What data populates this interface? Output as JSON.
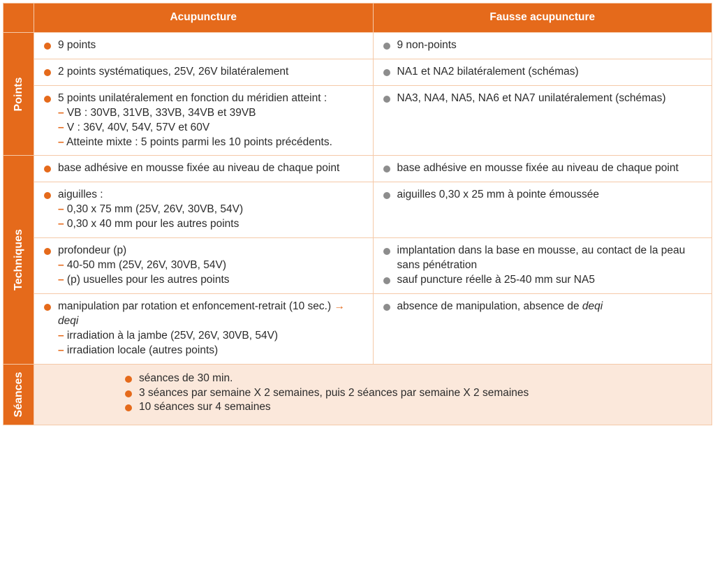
{
  "colors": {
    "orange": "#e56a1b",
    "gray_bullet": "#8d8d8d",
    "border": "#f5c9a8",
    "seances_bg": "#fbe8db",
    "text": "#2b2b2b",
    "white": "#ffffff"
  },
  "header": {
    "col1": "Acupuncture",
    "col2": "Fausse acupuncture"
  },
  "sections": {
    "points": {
      "label": "Points",
      "rows": [
        {
          "left": [
            {
              "text": "9 points"
            }
          ],
          "right": [
            {
              "text": "9 non-points"
            }
          ]
        },
        {
          "left": [
            {
              "text": "2 points systématiques, 25V, 26V bilatéralement"
            }
          ],
          "right": [
            {
              "text": "NA1 et NA2 bilatéralement (schémas)"
            }
          ]
        },
        {
          "left": [
            {
              "text": "5 points unilatéralement en fonction du méridien atteint :",
              "subs": [
                "VB : 30VB, 31VB, 33VB, 34VB et 39VB",
                "V : 36V, 40V, 54V, 57V et 60V",
                "Atteinte mixte : 5 points parmi les 10 points précédents."
              ]
            }
          ],
          "right": [
            {
              "text": "NA3, NA4, NA5, NA6 et NA7 unilatéralement (schémas)"
            }
          ]
        }
      ]
    },
    "techniques": {
      "label": "Techniques",
      "rows": [
        {
          "left": [
            {
              "text": "base adhésive en mousse fixée au niveau de chaque point"
            }
          ],
          "right": [
            {
              "text": "base adhésive en mousse fixée au niveau de chaque point"
            }
          ]
        },
        {
          "left": [
            {
              "text": "aiguilles :",
              "subs": [
                "0,30 x 75 mm (25V, 26V, 30VB, 54V)",
                "0,30 x 40 mm pour les autres points"
              ]
            }
          ],
          "right": [
            {
              "text": "aiguilles 0,30 x 25 mm à pointe émoussée"
            }
          ]
        },
        {
          "left": [
            {
              "text": " profondeur (p)",
              "subs": [
                "40-50 mm (25V, 26V, 30VB, 54V)",
                "(p) usuelles pour les autres points"
              ]
            }
          ],
          "right": [
            {
              "text": "implantation dans la base en mousse, au contact de la peau sans pénétration"
            },
            {
              "text": "sauf puncture réelle à 25-40 mm sur NA5"
            }
          ]
        },
        {
          "left": [
            {
              "text_html": "manipulation par rotation et enfoncement-retrait (10 sec.) <span class=\"arrow\">→</span> <em>deqi</em>",
              "subs": [
                "irradiation à la jambe (25V, 26V, 30VB, 54V)",
                "irradiation locale (autres points)"
              ]
            }
          ],
          "right": [
            {
              "text_html": "absence de manipulation, absence de <em>deqi</em>"
            }
          ]
        }
      ]
    },
    "seances": {
      "label": "Séances",
      "items": [
        "séances de 30 min.",
        "3 séances par semaine X 2 semaines, puis 2 séances par semaine X 2 semaines",
        "10 séances sur 4 semaines"
      ]
    }
  }
}
